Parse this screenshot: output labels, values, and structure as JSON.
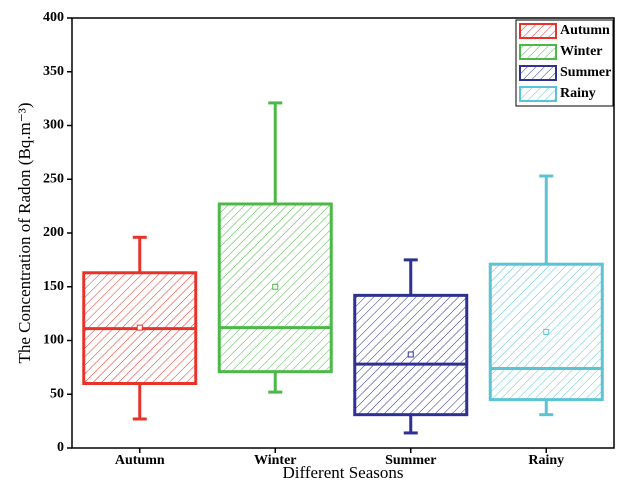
{
  "chart_data": {
    "type": "box",
    "xlabel": "Different Seasons",
    "ylabel": "The Concentration of Radon (Bq.m⁻³)",
    "categories": [
      "Autumn",
      "Winter",
      "Summer",
      "Rainy"
    ],
    "series": [
      {
        "name": "Autumn",
        "color": "#e8332b",
        "min": 27,
        "q1": 60,
        "median": 111,
        "q3": 163,
        "max": 196,
        "mean": 112
      },
      {
        "name": "Winter",
        "color": "#4db848",
        "min": 52,
        "q1": 71,
        "median": 112,
        "q3": 227,
        "max": 321,
        "mean": 150
      },
      {
        "name": "Summer",
        "color": "#2e3192",
        "min": 14,
        "q1": 31,
        "median": 78,
        "q3": 142,
        "max": 175,
        "mean": 87
      },
      {
        "name": "Rainy",
        "color": "#5bc3d4",
        "min": 31,
        "q1": 45,
        "median": 74,
        "q3": 171,
        "max": 253,
        "mean": 108
      }
    ],
    "ylim": [
      0,
      400
    ],
    "yticks": [
      0,
      50,
      100,
      150,
      200,
      250,
      300,
      350,
      400
    ],
    "legend": "upper right"
  }
}
